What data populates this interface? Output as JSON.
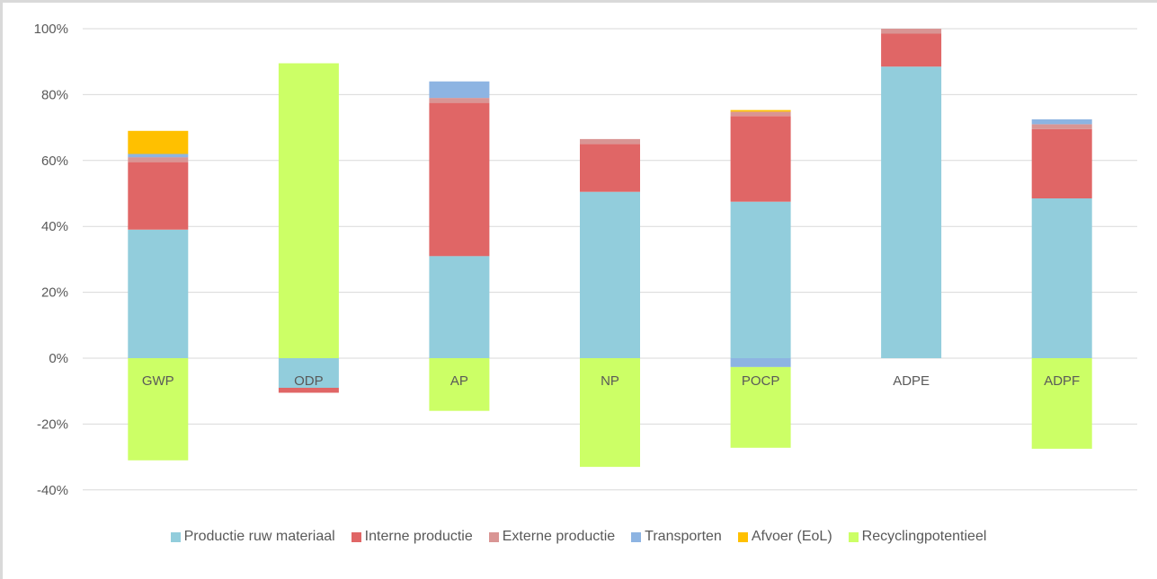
{
  "chart_data": {
    "type": "bar",
    "stacked": true,
    "categories": [
      "GWP",
      "ODP",
      "AP",
      "NP",
      "POCP",
      "ADPE",
      "ADPF"
    ],
    "ylim": [
      -40,
      100
    ],
    "yticks": [
      100,
      80,
      60,
      40,
      20,
      0,
      -20,
      -40
    ],
    "ytick_labels": [
      "100%",
      "80%",
      "60%",
      "40%",
      "20%",
      "0%",
      "-20%",
      "-40%"
    ],
    "grid": true,
    "legend_position": "bottom",
    "series": [
      {
        "name": "Productie ruw materiaal",
        "color": "#92cddc",
        "values": [
          39,
          -9,
          31,
          50.5,
          47.5,
          88.5,
          48.5
        ]
      },
      {
        "name": "Interne productie",
        "color": "#e06666",
        "values": [
          20.5,
          -1.5,
          46.5,
          14.5,
          26,
          10,
          21
        ]
      },
      {
        "name": "Externe productie",
        "color": "#d99594",
        "values": [
          1.5,
          0,
          1.5,
          1.5,
          1.3,
          1.5,
          1.5
        ]
      },
      {
        "name": "Transporten",
        "color": "#8db4e2",
        "values": [
          1,
          0,
          5,
          0,
          -2.7,
          0,
          1.5
        ]
      },
      {
        "name": "Afvoer (EoL)",
        "color": "#ffc000",
        "values": [
          7,
          0,
          0,
          0,
          0.5,
          0,
          0
        ]
      },
      {
        "name": "Recyclingpotentieel",
        "color": "#ccff66",
        "values": [
          -31,
          89.5,
          -16,
          -33,
          -24.5,
          0,
          -27.5
        ]
      }
    ]
  }
}
